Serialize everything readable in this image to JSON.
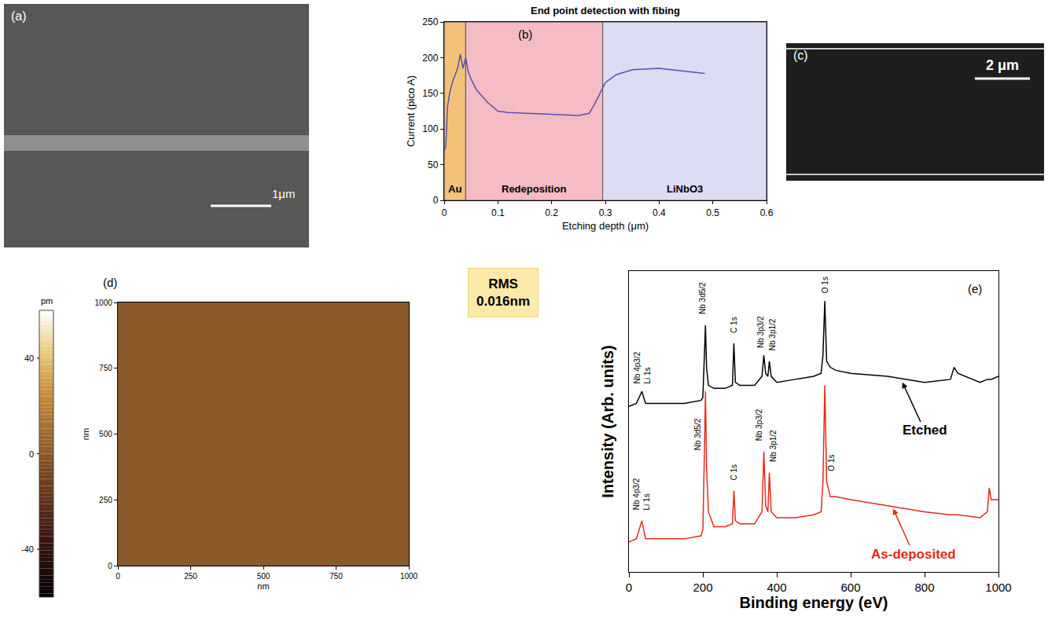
{
  "chart_data": [
    {
      "type": "image",
      "panel": "(a)",
      "scale_bar": "1μm"
    },
    {
      "type": "line",
      "panel": "(b)",
      "title": "End point detection with fibing",
      "x_label": "Etching depth (μm)",
      "y_label": "Current (pico A)",
      "x": [
        0,
        0.003,
        0.006,
        0.01,
        0.015,
        0.02,
        0.025,
        0.03,
        0.035,
        0.04,
        0.045,
        0.05,
        0.06,
        0.08,
        0.1,
        0.12,
        0.15,
        0.2,
        0.25,
        0.27,
        0.28,
        0.29,
        0.3,
        0.32,
        0.35,
        0.4,
        0.45,
        0.485
      ],
      "values": [
        70,
        75,
        130,
        150,
        165,
        175,
        185,
        205,
        185,
        200,
        180,
        170,
        155,
        138,
        125,
        123,
        122,
        121,
        119,
        122,
        135,
        150,
        165,
        176,
        183,
        185,
        181,
        178
      ],
      "color": "#5b4fb0",
      "xlim": [
        0,
        0.6
      ],
      "xticks": [
        0,
        0.1,
        0.2,
        0.3,
        0.4,
        0.5,
        0.6
      ],
      "ylim": [
        0,
        250
      ],
      "yticks": [
        0,
        50,
        100,
        150,
        200,
        250
      ],
      "regions": [
        {
          "label": "Au",
          "x0": 0,
          "x1": 0.04,
          "color": "#f3c27a"
        },
        {
          "label": "Redeposition",
          "x0": 0.04,
          "x1": 0.295,
          "color": "#f5bcc4"
        },
        {
          "label": "LiNbO3",
          "x0": 0.295,
          "x1": 0.6,
          "color": "#dcdcf2"
        }
      ]
    },
    {
      "type": "image",
      "panel": "(c)",
      "scale_bar": "2 μm"
    },
    {
      "type": "surface",
      "panel": "(d)",
      "x_label": "nm",
      "y_label": "nm",
      "xlim": [
        0,
        1000
      ],
      "xticks": [
        0,
        250,
        500,
        750,
        1000
      ],
      "ylim": [
        0,
        1000
      ],
      "yticks": [
        0,
        250,
        500,
        750,
        1000
      ],
      "colorbar": {
        "title": "pm",
        "range": [
          -60,
          60
        ],
        "ticks": [
          40,
          0,
          -40
        ]
      },
      "annotations": [
        "RMS",
        "0.016nm"
      ]
    },
    {
      "type": "line",
      "panel": "(e)",
      "x_label": "Binding energy (eV)",
      "y_label": "Intensity (Arb. units)",
      "tick_labels": "x",
      "xlim": [
        0,
        1000
      ],
      "xticks": [
        0,
        200,
        400,
        600,
        800,
        1000
      ],
      "ylim": [
        0,
        100
      ],
      "x": [
        0,
        20,
        35,
        45,
        100,
        150,
        195,
        200,
        205,
        207,
        210,
        215,
        230,
        260,
        280,
        284,
        288,
        300,
        340,
        360,
        365,
        370,
        376,
        380,
        385,
        400,
        450,
        500,
        520,
        525,
        530,
        535,
        545,
        560,
        600,
        700,
        800,
        870,
        880,
        890,
        950,
        970,
        975,
        980,
        1000
      ],
      "series": [
        {
          "name": "Etched",
          "color": "#000000",
          "values": [
            55,
            56,
            60,
            56,
            56,
            56,
            57,
            58,
            75,
            82,
            68,
            62,
            61,
            61,
            62,
            76,
            63,
            62,
            62,
            65,
            72,
            66,
            65,
            70,
            65,
            63,
            64,
            65,
            66,
            72,
            90,
            70,
            68,
            67,
            66,
            65,
            63,
            64,
            68,
            66,
            63,
            64,
            64,
            64,
            65
          ],
          "label_at": {
            "x": 740,
            "y": 63,
            "text_x": 800,
            "text_y": 47
          }
        },
        {
          "name": "As-deposited",
          "color": "#e8291c",
          "values": [
            10,
            11,
            17,
            11,
            11,
            11,
            12,
            14,
            45,
            60,
            35,
            20,
            15,
            15,
            16,
            27,
            17,
            16,
            16,
            20,
            40,
            22,
            20,
            33,
            20,
            18,
            18,
            19,
            20,
            30,
            62,
            30,
            25,
            25,
            24,
            22,
            20,
            19,
            19,
            19,
            18,
            20,
            28,
            24,
            24
          ],
          "label_at": {
            "x": 715,
            "y": 21,
            "text_x": 770,
            "text_y": 6
          }
        }
      ],
      "annotations": [
        {
          "text": "Nb 4p3/2",
          "x": 22,
          "y": 62
        },
        {
          "text": "Li 1s",
          "x": 48,
          "y": 62
        },
        {
          "text": "Nb 3d5/2",
          "x": 200,
          "y": 85
        },
        {
          "text": "C 1s",
          "x": 285,
          "y": 79
        },
        {
          "text": "Nb 3p3/2",
          "x": 355,
          "y": 74
        },
        {
          "text": "Nb 3p1/2",
          "x": 390,
          "y": 73
        },
        {
          "text": "O 1s",
          "x": 530,
          "y": 92
        },
        {
          "text": "Nb 4p3/2",
          "x": 22,
          "y": 20
        },
        {
          "text": "Li 1s",
          "x": 48,
          "y": 20
        },
        {
          "text": "Nb 3d5/2",
          "x": 185,
          "y": 40
        },
        {
          "text": "C 1s",
          "x": 285,
          "y": 30
        },
        {
          "text": "Nb 3p3/2",
          "x": 352,
          "y": 43
        },
        {
          "text": "Nb 3p1/2",
          "x": 390,
          "y": 36
        },
        {
          "text": "O 1s",
          "x": 548,
          "y": 33
        }
      ]
    }
  ]
}
